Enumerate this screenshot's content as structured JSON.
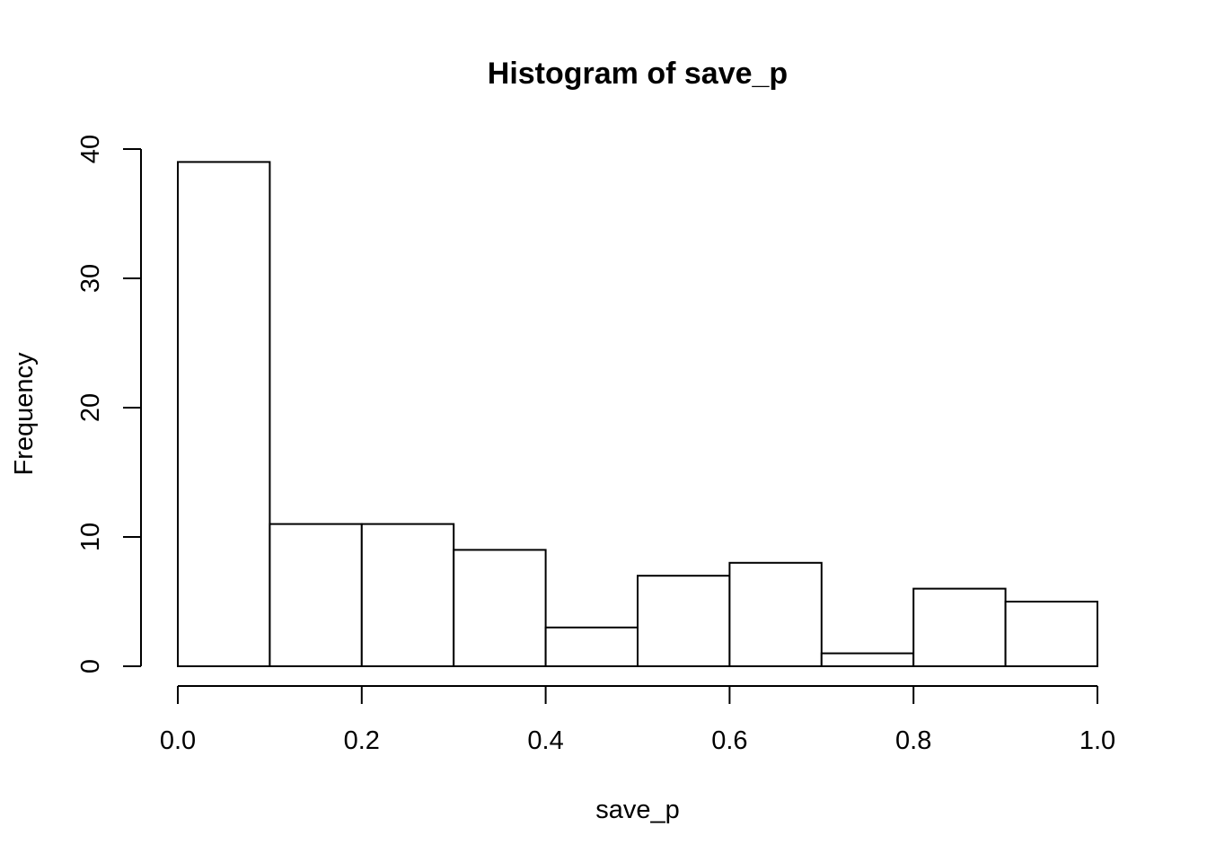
{
  "chart_data": {
    "type": "bar",
    "title": "Histogram of save_p",
    "xlabel": "save_p",
    "ylabel": "Frequency",
    "bins": [
      {
        "start": 0.0,
        "end": 0.1,
        "count": 39
      },
      {
        "start": 0.1,
        "end": 0.2,
        "count": 11
      },
      {
        "start": 0.2,
        "end": 0.3,
        "count": 11
      },
      {
        "start": 0.3,
        "end": 0.4,
        "count": 9
      },
      {
        "start": 0.4,
        "end": 0.5,
        "count": 3
      },
      {
        "start": 0.5,
        "end": 0.6,
        "count": 7
      },
      {
        "start": 0.6,
        "end": 0.7,
        "count": 8
      },
      {
        "start": 0.7,
        "end": 0.8,
        "count": 1
      },
      {
        "start": 0.8,
        "end": 0.9,
        "count": 6
      },
      {
        "start": 0.9,
        "end": 1.0,
        "count": 5
      }
    ],
    "xlim": [
      0.0,
      1.0
    ],
    "ylim": [
      0,
      40
    ],
    "x_ticks": [
      {
        "value": 0.0,
        "label": "0.0"
      },
      {
        "value": 0.2,
        "label": "0.2"
      },
      {
        "value": 0.4,
        "label": "0.4"
      },
      {
        "value": 0.6,
        "label": "0.6"
      },
      {
        "value": 0.8,
        "label": "0.8"
      },
      {
        "value": 1.0,
        "label": "1.0"
      }
    ],
    "y_ticks": [
      {
        "value": 0,
        "label": "0"
      },
      {
        "value": 10,
        "label": "10"
      },
      {
        "value": 20,
        "label": "20"
      },
      {
        "value": 30,
        "label": "30"
      },
      {
        "value": 40,
        "label": "40"
      }
    ],
    "grid": false,
    "colors": {
      "bar_fill": "#ffffff",
      "bar_stroke": "#000000",
      "background": "#ffffff"
    }
  }
}
